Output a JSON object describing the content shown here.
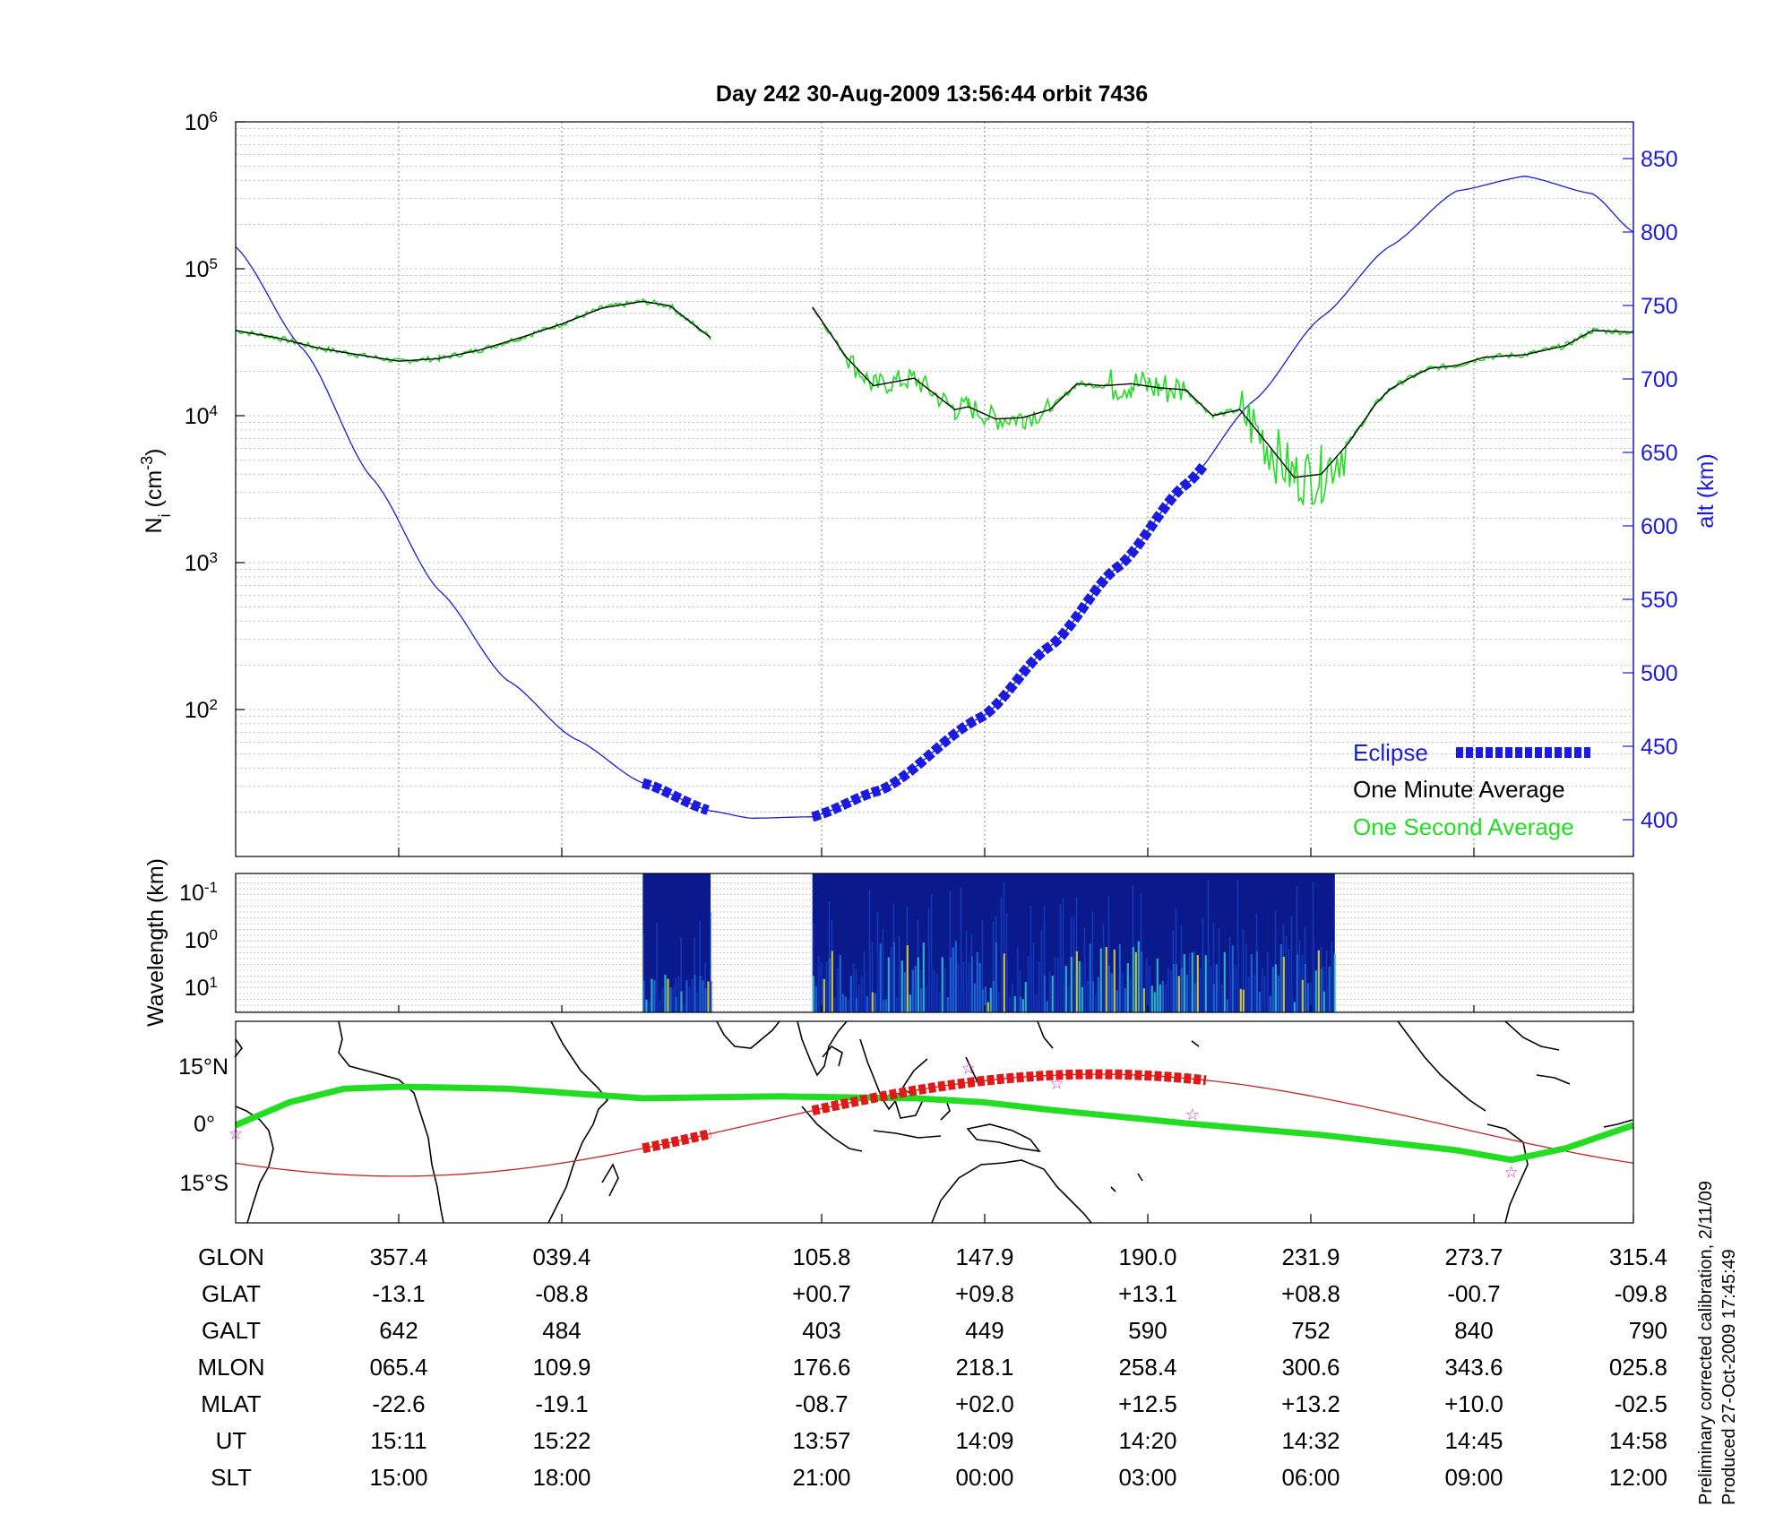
{
  "chart_data": [
    {
      "type": "line",
      "title": "Day 242  30-Aug-2009 13:56:44   orbit 7436",
      "ylabel": "N_i (cm^-3)",
      "ylabel_main": "N",
      "ylabel_sub": "i",
      "ylabel_unit_pre": " (cm",
      "ylabel_unit_exp": "-3",
      "ylabel_unit_post": ")",
      "yscale": "log",
      "ylim": [
        10,
        1000000
      ],
      "ytick_base": "10",
      "yticks": [
        {
          "value": 100,
          "exp": "2"
        },
        {
          "value": 1000,
          "exp": "3"
        },
        {
          "value": 10000,
          "exp": "4"
        },
        {
          "value": 100000,
          "exp": "5"
        },
        {
          "value": 1000000,
          "exp": "6"
        }
      ],
      "y2label": "alt (km)",
      "y2lim": [
        375,
        875
      ],
      "y2ticks": [
        "400",
        "450",
        "500",
        "550",
        "600",
        "650",
        "700",
        "750",
        "800",
        "850"
      ],
      "xlim": [
        0,
        103
      ],
      "legend_placement": "bottom-right",
      "legend": [
        "Eclipse",
        "One Minute Average",
        "One Second Average"
      ],
      "colors": {
        "altitude": "#1a1ae0",
        "eclipse": "#1a1ae0",
        "minute": "#000000",
        "second": "#22dd22"
      },
      "series": [
        {
          "name": "One Minute Average",
          "x": [
            0,
            3,
            6,
            9,
            12,
            15,
            18,
            21,
            24,
            27,
            30,
            32,
            34,
            35,
            42.5,
            45,
            47,
            50,
            53,
            54,
            56,
            58,
            60,
            62,
            64,
            66,
            68,
            70,
            72,
            74,
            76,
            78,
            80,
            82,
            84,
            85,
            86,
            87,
            88,
            90,
            92,
            95,
            98,
            100,
            103
          ],
          "y": [
            38000,
            34000,
            29000,
            26000,
            23500,
            24500,
            28000,
            34000,
            42000,
            54000,
            60000,
            56000,
            40000,
            34000,
            55000,
            25000,
            16000,
            18000,
            11000,
            11500,
            9500,
            9700,
            11000,
            16500,
            16000,
            16500,
            15500,
            15000,
            10000,
            11000,
            6500,
            3800,
            4000,
            6500,
            12000,
            15000,
            17000,
            19000,
            21000,
            22000,
            25000,
            26000,
            30000,
            38000,
            37000
          ]
        },
        {
          "name": "Eclipse",
          "x": [
            0,
            5,
            10,
            15,
            20,
            25,
            30,
            35,
            38,
            42.5,
            47.5,
            55,
            60,
            65,
            70,
            75,
            80,
            85,
            90,
            95,
            100,
            103
          ],
          "y2": [
            790,
            720,
            633,
            556,
            495,
            455,
            425,
            406,
            401,
            402,
            420,
            470,
            518,
            572,
            628,
            685,
            742,
            790,
            828,
            838,
            826,
            800
          ]
        }
      ],
      "eclipse_ranges": [
        [
          30,
          35
        ],
        [
          42.5,
          71.5
        ]
      ]
    },
    {
      "type": "heatmap",
      "ylabel": "Wavelength (km)",
      "ytick_base": "10",
      "yticks": [
        {
          "exp": "-1"
        },
        {
          "exp": "0"
        },
        {
          "exp": "1"
        }
      ],
      "active_ranges": [
        [
          30,
          35
        ],
        [
          42.5,
          81
        ]
      ]
    },
    {
      "type": "map",
      "ylabels": [
        "15°N",
        "0°",
        "15°S"
      ],
      "colors": {
        "track_dip": "#22dd22",
        "orbit": "#cc2222",
        "eclipse_track": "#e01818",
        "markers": "#cc33cc"
      }
    },
    {
      "type": "table",
      "rows": [
        {
          "label": "GLON",
          "values": [
            "357.4",
            "039.4",
            "105.8",
            "147.9",
            "190.0",
            "231.9",
            "273.7",
            "315.4"
          ]
        },
        {
          "label": "GLAT",
          "values": [
            "-13.1",
            "-08.8",
            "+00.7",
            "+09.8",
            "+13.1",
            "+08.8",
            "-00.7",
            "-09.8"
          ]
        },
        {
          "label": "GALT",
          "values": [
            "642",
            "484",
            "403",
            "449",
            "590",
            "752",
            "840",
            "790"
          ]
        },
        {
          "label": "MLON",
          "values": [
            "065.4",
            "109.9",
            "176.6",
            "218.1",
            "258.4",
            "300.6",
            "343.6",
            "025.8"
          ]
        },
        {
          "label": "MLAT",
          "values": [
            "-22.6",
            "-19.1",
            "-08.7",
            "+02.0",
            "+12.5",
            "+13.2",
            "+10.0",
            "-02.5"
          ]
        },
        {
          "label": "UT",
          "values": [
            "15:11",
            "15:22",
            "13:57",
            "14:09",
            "14:20",
            "14:32",
            "14:45",
            "14:58"
          ]
        },
        {
          "label": "SLT",
          "values": [
            "15:00",
            "18:00",
            "21:00",
            "00:00",
            "03:00",
            "06:00",
            "09:00",
            "12:00"
          ]
        }
      ]
    }
  ],
  "footnote": {
    "line1": "Preliminary corrected calibration, 2/11/09",
    "line2": "Produced 27-Oct-2009 17:45:49"
  }
}
